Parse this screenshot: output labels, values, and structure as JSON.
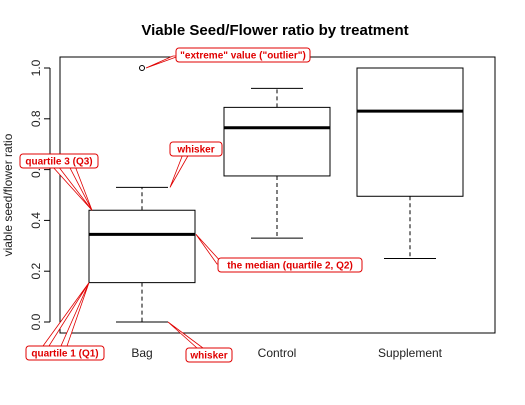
{
  "chart_data": {
    "type": "boxplot",
    "title": "Viable Seed/Flower ratio by treatment",
    "xlabel": "",
    "ylabel": "viable seed/flower ratio",
    "ylim": [
      0.0,
      1.0
    ],
    "yticks": [
      "0.0",
      "0.2",
      "0.4",
      "0.6",
      "0.8",
      "1.0"
    ],
    "grid": false,
    "categories": [
      "Bag",
      "Control",
      "Supplement"
    ],
    "boxes": [
      {
        "name": "Bag",
        "min": 0.0,
        "q1": 0.155,
        "median": 0.345,
        "q3": 0.44,
        "max": 0.53,
        "outliers": [
          1.0
        ]
      },
      {
        "name": "Control",
        "min": 0.33,
        "q1": 0.575,
        "median": 0.765,
        "q3": 0.845,
        "max": 0.92,
        "outliers": []
      },
      {
        "name": "Supplement",
        "min": 0.25,
        "q1": 0.495,
        "median": 0.83,
        "q3": 1.0,
        "max": 1.0,
        "outliers": []
      }
    ],
    "annotations": [
      {
        "text": "\"extreme\" value (\"outlier\")",
        "target": "Bag outlier"
      },
      {
        "text": "whisker",
        "target": "Bag upper whisker"
      },
      {
        "text": "quartile 3 (Q3)",
        "target": "Bag Q3"
      },
      {
        "text": "the median (quartile 2, Q2)",
        "target": "Bag median"
      },
      {
        "text": "quartile 1 (Q1)",
        "target": "Bag Q1"
      },
      {
        "text": "whisker",
        "target": "Bag lower whisker"
      }
    ],
    "colors": {
      "box": "#000000",
      "annotation": "#e00000"
    }
  }
}
